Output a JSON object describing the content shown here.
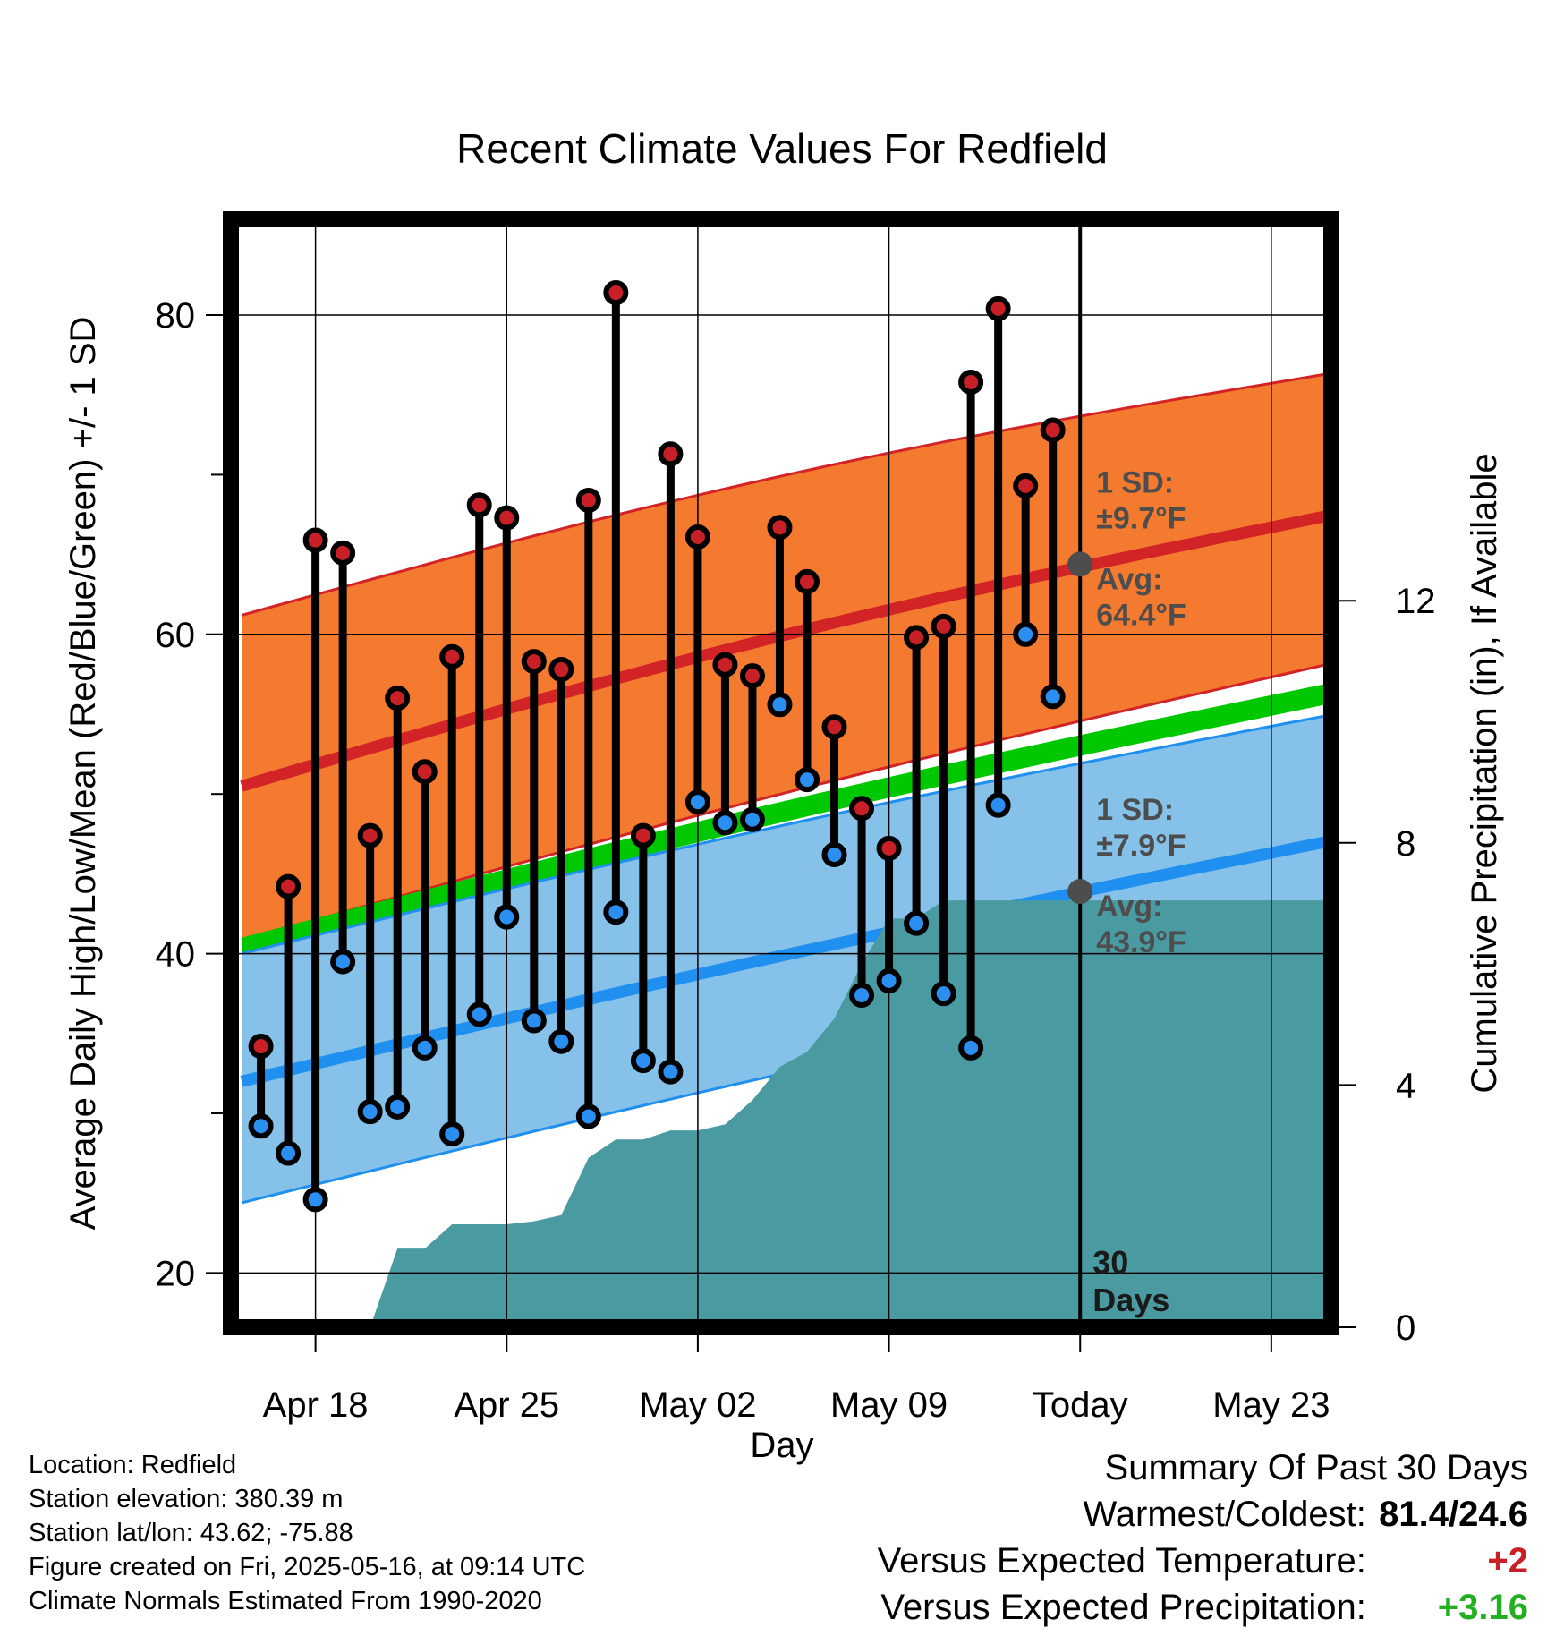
{
  "chart_data": {
    "type": "line",
    "title": "Recent Climate Values For Redfield",
    "xlabel": "Day",
    "ylabel": "Average Daily High/Low/Mean (Red/Blue/Green) +/- 1 SD",
    "y2label": "Cumulative Precipitation (in), If Available",
    "xlim": [
      -3.1,
      37.2
    ],
    "ylim": [
      16.6,
      86.0
    ],
    "y2lim": [
      0,
      18.3
    ],
    "x_ticks": [
      {
        "x": 0,
        "label": "Apr 18"
      },
      {
        "x": 7,
        "label": "Apr 25"
      },
      {
        "x": 14,
        "label": "May 02"
      },
      {
        "x": 21,
        "label": "May 09"
      },
      {
        "x": 28,
        "label": "Today"
      },
      {
        "x": 35,
        "label": "May 23"
      }
    ],
    "y_ticks": [
      20,
      40,
      60,
      80
    ],
    "y_minor_ticks": [
      30,
      50,
      70
    ],
    "y2_ticks": [
      0,
      4,
      8,
      12
    ],
    "today_x": 28,
    "today_label": "30 Days",
    "grid": true,
    "normals": {
      "x": [
        -2.7,
        37.0
      ],
      "high_mean": [
        50.5,
        67.4
      ],
      "high_upper": [
        61.2,
        76.3
      ],
      "high_lower": [
        40.8,
        58.1
      ],
      "low_mean": [
        32.0,
        47.0
      ],
      "low_upper": [
        40.0,
        54.9
      ],
      "low_lower": [
        24.4,
        39.6
      ],
      "daily_mean_start": [
        41.0,
        56.9
      ]
    },
    "high_sd_label": "1 SD:",
    "high_sd_value": "±9.7°F",
    "high_avg_label": "Avg:",
    "high_avg_value": "64.4°F",
    "low_sd_label": "1 SD:",
    "low_sd_value": "±7.9°F",
    "low_avg_label": "Avg:",
    "low_avg_value": "43.9°F",
    "highs": [
      34.2,
      44.2,
      65.9,
      65.1,
      47.4,
      56.0,
      51.4,
      58.6,
      68.1,
      67.3,
      58.3,
      57.8,
      68.4,
      81.4,
      47.4,
      71.3,
      66.1,
      58.1,
      57.4,
      66.7,
      63.3,
      54.2,
      49.1,
      46.6,
      59.8,
      60.5,
      75.8,
      80.4,
      69.3,
      72.8
    ],
    "lows": [
      29.2,
      27.5,
      24.6,
      39.5,
      30.1,
      30.4,
      34.1,
      28.7,
      36.2,
      42.3,
      35.8,
      34.5,
      29.8,
      42.6,
      33.3,
      32.6,
      49.5,
      48.2,
      48.4,
      55.6,
      50.9,
      46.2,
      37.4,
      38.3,
      41.9,
      37.5,
      34.1,
      49.3,
      60.0,
      56.1
    ],
    "precip_cumulative": [
      0,
      0,
      0,
      1.3,
      1.3,
      1.7,
      1.7,
      1.7,
      1.75,
      1.85,
      2.8,
      3.1,
      3.1,
      3.25,
      3.25,
      3.35,
      3.75,
      4.3,
      4.55,
      5.1,
      6.0,
      6.75,
      6.75,
      7.05,
      7.05,
      7.05,
      7.05,
      7.05,
      7.05,
      7.05,
      7.05
    ],
    "precip_extend_to": 37.0
  },
  "footer": {
    "location": "Location: Redfield",
    "elevation": "Station elevation: 380.39 m",
    "latlon": "Station lat/lon: 43.62; -75.88",
    "created": "Figure created on Fri, 2025-05-16, at 09:14 UTC",
    "normals": "Climate Normals Estimated From 1990-2020"
  },
  "summary": {
    "title": "Summary Of Past 30 Days",
    "warm_cold_label": "Warmest/Coldest:",
    "warm_cold_value": "81.4/24.6",
    "temp_label": "Versus Expected Temperature:",
    "temp_value": "+2",
    "precip_label": "Versus Expected Precipitation:",
    "precip_value": "+3.16"
  },
  "colors": {
    "high_band": "#f47a2f",
    "high_line": "#d22327",
    "low_band": "#85c1e8",
    "low_line": "#1f8ff0",
    "mean_band": "#00c800",
    "precip": "#4a9aa2",
    "high_dot": "#c82026",
    "low_dot": "#2a8ff0",
    "avg_marker": "#4d4d4d",
    "temp_value": "#c82026",
    "precip_value": "#22b022"
  }
}
